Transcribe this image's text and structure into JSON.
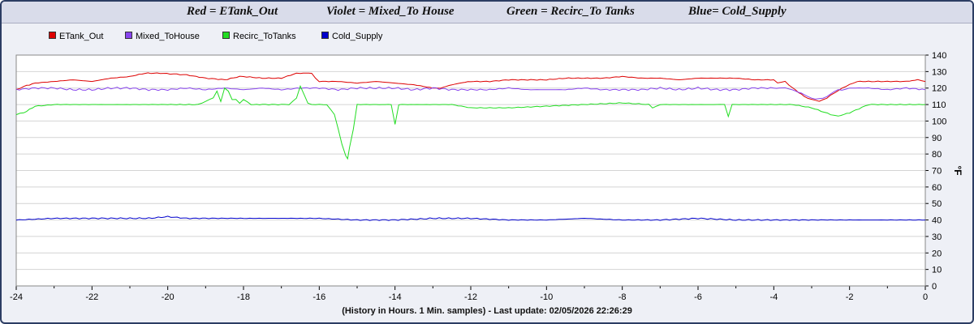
{
  "header": {
    "titles": [
      "Red = ETank_Out",
      "Violet = Mixed_To House",
      "Green = Recirc_To Tanks",
      "Blue= Cold_Supply"
    ]
  },
  "footer": {
    "text": "(History in Hours. 1 Min. samples) - Last update: 02/05/2026 22:26:29"
  },
  "chart_data": {
    "type": "line",
    "xlabel": "",
    "ylabel": "°F",
    "xlim": [
      -24,
      0
    ],
    "ylim": [
      0,
      140
    ],
    "x_ticks": [
      -24,
      -22,
      -20,
      -18,
      -16,
      -14,
      -12,
      -10,
      -8,
      -6,
      -4,
      -2,
      0
    ],
    "y_ticks": [
      0,
      10,
      20,
      30,
      40,
      50,
      60,
      70,
      80,
      90,
      100,
      110,
      120,
      130,
      140
    ],
    "grid": true,
    "legend_position": "top-left",
    "series": [
      {
        "name": "ETank_Out",
        "color": "#dd0000",
        "x": [
          -24,
          -23.8,
          -23.5,
          -23,
          -22.5,
          -22,
          -21.5,
          -21,
          -20.6,
          -20.2,
          -19.5,
          -19,
          -18.5,
          -18.1,
          -18,
          -17.5,
          -17,
          -16.6,
          -16.5,
          -16.2,
          -16.1,
          -16,
          -15.5,
          -15,
          -14.5,
          -14,
          -13.5,
          -13,
          -12.8,
          -12.5,
          -12.3,
          -12,
          -11.5,
          -11,
          -10.5,
          -10,
          -9.5,
          -9,
          -8.5,
          -8,
          -7.5,
          -7,
          -6.5,
          -6,
          -5.5,
          -5,
          -4.5,
          -4,
          -3.9,
          -3.7,
          -3.5,
          -3.2,
          -3,
          -2.8,
          -2.6,
          -2.4,
          -2.2,
          -2,
          -1.8,
          -1.5,
          -1,
          -0.5,
          -0.2,
          0
        ],
        "values": [
          119,
          121,
          123,
          124,
          125,
          124,
          126,
          127,
          129,
          129,
          128,
          126,
          125,
          127,
          127,
          126,
          126,
          129,
          129,
          129,
          126,
          124,
          124,
          123,
          124,
          123,
          122,
          120,
          120,
          122,
          123,
          124,
          124,
          125,
          125,
          125,
          126,
          126,
          126,
          127,
          126,
          126,
          125,
          126,
          126,
          126,
          125,
          125,
          123,
          124,
          120,
          115,
          113,
          112,
          114,
          117,
          120,
          122,
          124,
          124,
          124,
          124,
          125,
          124
        ]
      },
      {
        "name": "Mixed_ToHouse",
        "color": "#8844ee",
        "x": [
          -24,
          -23.5,
          -23,
          -22.5,
          -22,
          -21.5,
          -21,
          -20.5,
          -20,
          -19.5,
          -19,
          -18.5,
          -18,
          -17.5,
          -17,
          -16.5,
          -16,
          -15.5,
          -15,
          -14.5,
          -14,
          -13.5,
          -13,
          -12.5,
          -12,
          -11.5,
          -11,
          -10.5,
          -10,
          -9.5,
          -9,
          -8.5,
          -8,
          -7.5,
          -7,
          -6.5,
          -6,
          -5.5,
          -5,
          -4.5,
          -4,
          -3.7,
          -3.5,
          -3.2,
          -3,
          -2.8,
          -2.6,
          -2.4,
          -2.2,
          -2,
          -1.5,
          -1,
          -0.5,
          0
        ],
        "values": [
          119,
          120,
          120,
          119,
          119,
          120,
          120,
          119,
          119,
          120,
          119,
          120,
          119,
          120,
          119,
          120,
          120,
          119,
          120,
          120,
          120,
          119,
          120,
          119,
          119,
          119,
          120,
          119,
          119,
          119,
          120,
          119,
          119,
          119,
          120,
          119,
          120,
          119,
          119,
          120,
          120,
          120,
          119,
          116,
          114,
          113,
          115,
          118,
          119,
          120,
          120,
          119,
          120,
          119
        ]
      },
      {
        "name": "Recirc_ToTanks",
        "color": "#22dd22",
        "x": [
          -24,
          -23.8,
          -23.5,
          -23,
          -22.5,
          -22,
          -21,
          -20,
          -19.2,
          -19,
          -18.8,
          -18.7,
          -18.6,
          -18.5,
          -18.4,
          -18.3,
          -18.2,
          -18.1,
          -18,
          -17.8,
          -17.5,
          -17,
          -16.8,
          -16.6,
          -16.5,
          -16.4,
          -16.3,
          -16.2,
          -16,
          -15.8,
          -15.6,
          -15.5,
          -15.4,
          -15.3,
          -15.25,
          -15.2,
          -15.1,
          -15,
          -14.5,
          -14.1,
          -14,
          -13.9,
          -13.5,
          -13,
          -12.5,
          -12,
          -11,
          -10,
          -9,
          -8,
          -7.3,
          -7.2,
          -7,
          -6.5,
          -6,
          -5.5,
          -5.3,
          -5.2,
          -5.1,
          -5,
          -4.5,
          -4,
          -3.5,
          -3,
          -2.5,
          -2.3,
          -2,
          -1.5,
          -1,
          -0.5,
          0
        ],
        "values": [
          104,
          105,
          109,
          110,
          110,
          110,
          110,
          110,
          110,
          112,
          114,
          118,
          112,
          120,
          118,
          113,
          113,
          111,
          113,
          110,
          110,
          110,
          110,
          114,
          121,
          116,
          111,
          110,
          110,
          110,
          104,
          95,
          86,
          79,
          77,
          84,
          95,
          110,
          110,
          110,
          98,
          110,
          110,
          110,
          110,
          108,
          108,
          109,
          110,
          111,
          110,
          108,
          110,
          110,
          110,
          110,
          110,
          103,
          110,
          110,
          110,
          110,
          110,
          108,
          104,
          103,
          105,
          110,
          110,
          110,
          110
        ]
      },
      {
        "name": "Cold_Supply",
        "color": "#0000cc",
        "x": [
          -24,
          -23,
          -22,
          -21,
          -20.5,
          -20,
          -19.5,
          -19,
          -18,
          -17,
          -16,
          -15,
          -14,
          -13,
          -12,
          -11,
          -10,
          -9,
          -8,
          -7,
          -6,
          -5,
          -4,
          -3,
          -2,
          -1,
          0
        ],
        "values": [
          40,
          41,
          41,
          41,
          41,
          42,
          41,
          41,
          41,
          41,
          41,
          40,
          40,
          41,
          41,
          40,
          40,
          41,
          40,
          40,
          41,
          40,
          40,
          40,
          40,
          40,
          40
        ]
      }
    ]
  }
}
